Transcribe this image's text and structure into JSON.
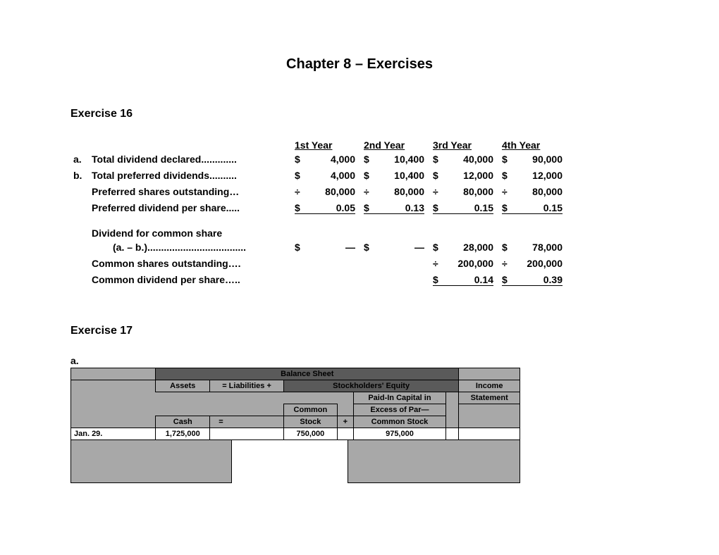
{
  "chapter_title": "Chapter 8 – Exercises",
  "exercise16": {
    "title": "Exercise 16",
    "headers": [
      "1st Year",
      "2nd Year",
      "3rd Year",
      "4th Year"
    ],
    "rows": [
      {
        "letter": "a.",
        "desc": "Total dividend declared.............",
        "cells": [
          {
            "c": "$",
            "v": "4,000"
          },
          {
            "c": "$",
            "v": "10,400"
          },
          {
            "c": "$",
            "v": "40,000"
          },
          {
            "c": "$",
            "v": "90,000"
          }
        ],
        "style": "plain"
      },
      {
        "letter": "b.",
        "desc": "Total preferred dividends..........",
        "cells": [
          {
            "c": "$",
            "v": "4,000"
          },
          {
            "c": "$",
            "v": "10,400"
          },
          {
            "c": "$",
            "v": "12,000"
          },
          {
            "c": "$",
            "v": "12,000"
          }
        ],
        "style": "plain"
      },
      {
        "letter": "",
        "desc": "Preferred shares outstanding…",
        "cells": [
          {
            "c": "÷",
            "v": "80,000",
            "u": true
          },
          {
            "c": "÷",
            "v": "80,000",
            "u": true
          },
          {
            "c": "÷",
            "v": "80,000",
            "u": true
          },
          {
            "c": "÷",
            "v": "80,000",
            "u": true
          }
        ],
        "style": "underline"
      },
      {
        "letter": "",
        "desc": "Preferred dividend per share.....",
        "cells": [
          {
            "c": "$",
            "v": "0.05",
            "d": true
          },
          {
            "c": "$",
            "v": "0.13",
            "d": true
          },
          {
            "c": "$",
            "v": "0.15",
            "d": true
          },
          {
            "c": "$",
            "v": "0.15",
            "d": true
          }
        ],
        "style": "double"
      },
      {
        "spacer": true
      },
      {
        "letter": "",
        "desc": "Dividend for common share",
        "cells": [],
        "style": "plain"
      },
      {
        "letter": "",
        "desc_indent": "(a. – b.)....................................",
        "cells": [
          {
            "c": "$",
            "v": "—"
          },
          {
            "c": "$",
            "v": "—"
          },
          {
            "c": "$",
            "v": "28,000"
          },
          {
            "c": "$",
            "v": "78,000"
          }
        ],
        "style": "plain"
      },
      {
        "letter": "",
        "desc": "Common shares outstanding….",
        "cells": [
          {
            "c": "",
            "v": ""
          },
          {
            "c": "",
            "v": ""
          },
          {
            "c": "÷",
            "v": "200,000",
            "u": true
          },
          {
            "c": "÷",
            "v": "200,000",
            "u": true
          }
        ],
        "style": "underline"
      },
      {
        "letter": "",
        "desc": "Common dividend per share…..",
        "cells": [
          {
            "c": "",
            "v": ""
          },
          {
            "c": "",
            "v": ""
          },
          {
            "c": "$",
            "v": "0.14",
            "d": true
          },
          {
            "c": "$",
            "v": "0.39",
            "d": true
          }
        ],
        "style": "double"
      }
    ]
  },
  "exercise17": {
    "title": "Exercise 17",
    "sub": "a.",
    "colors": {
      "gray_bg": "#a8a8a8",
      "dark_hdr": "#5a5a5a",
      "white": "#ffffff",
      "border": "#000000"
    },
    "balance_sheet_label": "Balance Sheet",
    "col_assets": "Assets",
    "eq_label": "=  Liabilities   +",
    "se_label": "Stockholders' Equity",
    "income_label": "Income",
    "statement_label": "Statement",
    "common_label": "Common",
    "stock_label": "Stock",
    "paidin1": "Paid-In Capital in",
    "paidin2": "Excess of Par—",
    "paidin3": "Common Stock",
    "cash_label": "Cash",
    "eq_sign": "=",
    "plus_sign": "+",
    "date": "Jan. 29.",
    "cash_val": "1,725,000",
    "stock_val": "750,000",
    "paidin_val": "975,000"
  }
}
